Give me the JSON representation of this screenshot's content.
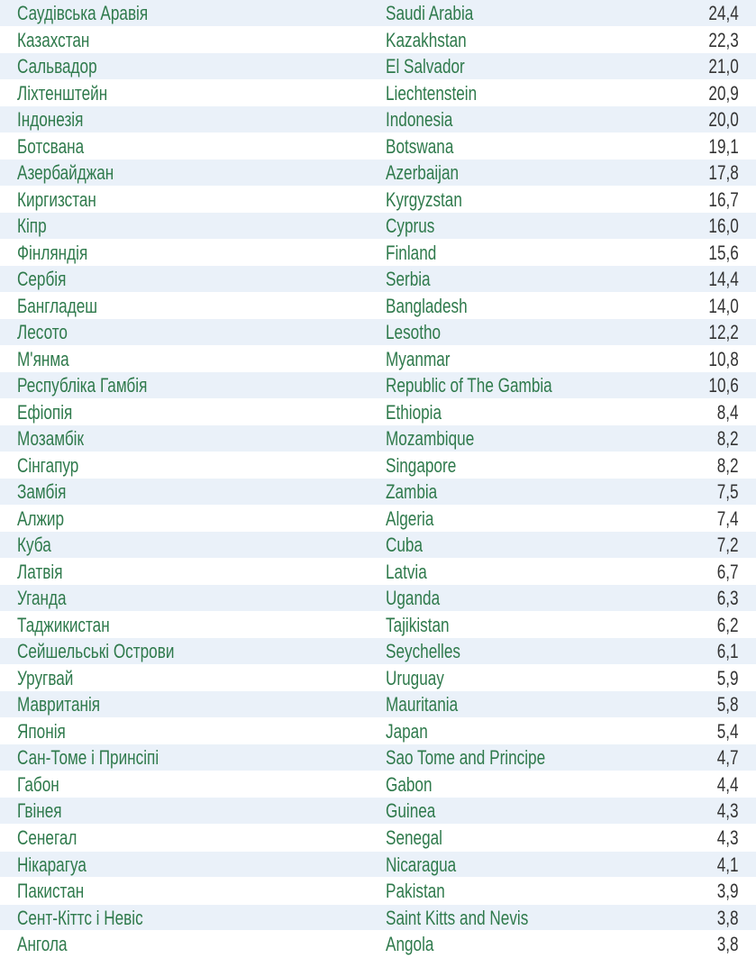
{
  "table": {
    "colors": {
      "text_country": "#2f7a4c",
      "text_value": "#333333",
      "row_alt_bg": "#eaf1f9"
    },
    "rows": [
      {
        "ua": "Саудівська Аравія",
        "en": "Saudi Arabia",
        "value": "24,4"
      },
      {
        "ua": "Казахстан",
        "en": "Kazakhstan",
        "value": "22,3"
      },
      {
        "ua": "Сальвадор",
        "en": "El Salvador",
        "value": "21,0"
      },
      {
        "ua": "Ліхтенштейн",
        "en": "Liechtenstein",
        "value": "20,9"
      },
      {
        "ua": "Індонезія",
        "en": "Indonesia",
        "value": "20,0"
      },
      {
        "ua": "Ботсвана",
        "en": "Botswana",
        "value": "19,1"
      },
      {
        "ua": "Азербайджан",
        "en": "Azerbaijan",
        "value": "17,8"
      },
      {
        "ua": "Киргизстан",
        "en": "Kyrgyzstan",
        "value": "16,7"
      },
      {
        "ua": "Кіпр",
        "en": "Cyprus",
        "value": "16,0"
      },
      {
        "ua": "Фінляндія",
        "en": "Finland",
        "value": "15,6"
      },
      {
        "ua": "Сербія",
        "en": "Serbia",
        "value": "14,4"
      },
      {
        "ua": "Бангладеш",
        "en": "Bangladesh",
        "value": "14,0"
      },
      {
        "ua": "Лесото",
        "en": "Lesotho",
        "value": "12,2"
      },
      {
        "ua": "М'янма",
        "en": "Myanmar",
        "value": "10,8"
      },
      {
        "ua": "Республіка Гамбія",
        "en": "Republic of The Gambia",
        "value": "10,6"
      },
      {
        "ua": "Ефіопія",
        "en": "Ethiopia",
        "value": "8,4"
      },
      {
        "ua": "Мозамбік",
        "en": "Mozambique",
        "value": "8,2"
      },
      {
        "ua": "Сінгапур",
        "en": "Singapore",
        "value": "8,2"
      },
      {
        "ua": "Замбія",
        "en": "Zambia",
        "value": "7,5"
      },
      {
        "ua": "Алжир",
        "en": "Algeria",
        "value": "7,4"
      },
      {
        "ua": "Куба",
        "en": "Cuba",
        "value": "7,2"
      },
      {
        "ua": "Латвія",
        "en": "Latvia",
        "value": "6,7"
      },
      {
        "ua": "Уганда",
        "en": "Uganda",
        "value": "6,3"
      },
      {
        "ua": "Таджикистан",
        "en": "Tajikistan",
        "value": "6,2"
      },
      {
        "ua": "Сейшельські Острови",
        "en": "Seychelles",
        "value": "6,1"
      },
      {
        "ua": "Уругвай",
        "en": "Uruguay",
        "value": "5,9"
      },
      {
        "ua": "Мавританія",
        "en": "Mauritania",
        "value": "5,8"
      },
      {
        "ua": "Японія",
        "en": "Japan",
        "value": "5,4"
      },
      {
        "ua": "Сан-Томе і Принсіпі",
        "en": "Sao Tome and Principe",
        "value": "4,7"
      },
      {
        "ua": "Габон",
        "en": "Gabon",
        "value": "4,4"
      },
      {
        "ua": "Гвінея",
        "en": "Guinea",
        "value": "4,3"
      },
      {
        "ua": "Сенегал",
        "en": "Senegal",
        "value": "4,3"
      },
      {
        "ua": "Нікарагуа",
        "en": "Nicaragua",
        "value": "4,1"
      },
      {
        "ua": "Пакистан",
        "en": "Pakistan",
        "value": "3,9"
      },
      {
        "ua": "Сент-Кіттс і Невіс",
        "en": "Saint Kitts and Nevis",
        "value": "3,8"
      },
      {
        "ua": "Ангола",
        "en": "Angola",
        "value": "3,8"
      }
    ]
  }
}
